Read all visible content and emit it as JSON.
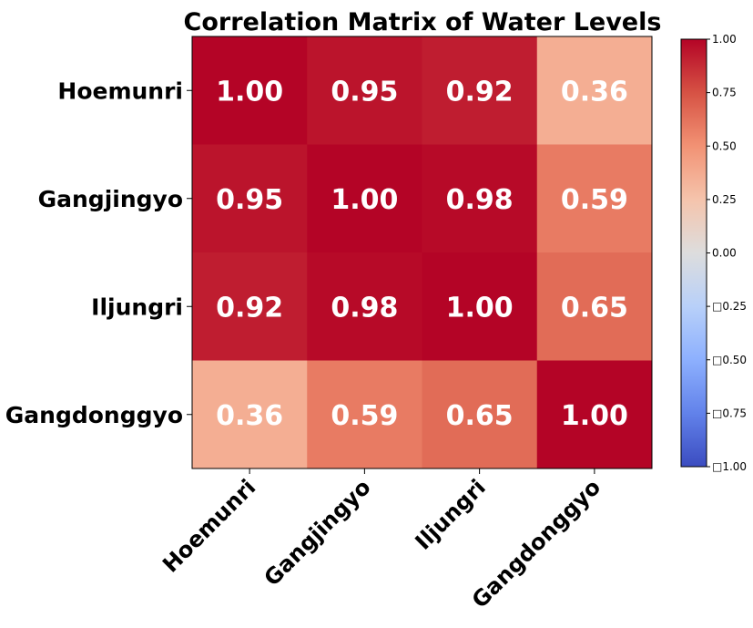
{
  "chart_data": {
    "type": "heatmap",
    "title": "Correlation Matrix of Water Levels",
    "row_labels": [
      "Hoemunri",
      "Gangjingyo",
      "Iljungri",
      "Gangdonggyo"
    ],
    "col_labels": [
      "Hoemunri",
      "Gangjingyo",
      "Iljungri",
      "Gangdonggyo"
    ],
    "values": [
      [
        1.0,
        0.95,
        0.92,
        0.36
      ],
      [
        0.95,
        1.0,
        0.98,
        0.59
      ],
      [
        0.92,
        0.98,
        1.0,
        0.65
      ],
      [
        0.36,
        0.59,
        0.65,
        1.0
      ]
    ],
    "value_labels": [
      [
        "1.00",
        "0.95",
        "0.92",
        "0.36"
      ],
      [
        "0.95",
        "1.00",
        "0.98",
        "0.59"
      ],
      [
        "0.92",
        "0.98",
        "1.00",
        "0.65"
      ],
      [
        "0.36",
        "0.59",
        "0.65",
        "1.00"
      ]
    ],
    "colormap": "coolwarm",
    "vmin": -1,
    "vmax": 1,
    "colorbar": {
      "ticks": [
        1.0,
        0.75,
        0.5,
        0.25,
        0.0,
        -0.25,
        -0.5,
        -0.75,
        -1.0
      ],
      "tick_labels": [
        "1.00",
        "0.75",
        "0.50",
        "0.25",
        "0.00",
        "□0.25",
        "□0.50",
        "□0.75",
        "□1.00"
      ]
    },
    "legend": "colorbar-right"
  }
}
